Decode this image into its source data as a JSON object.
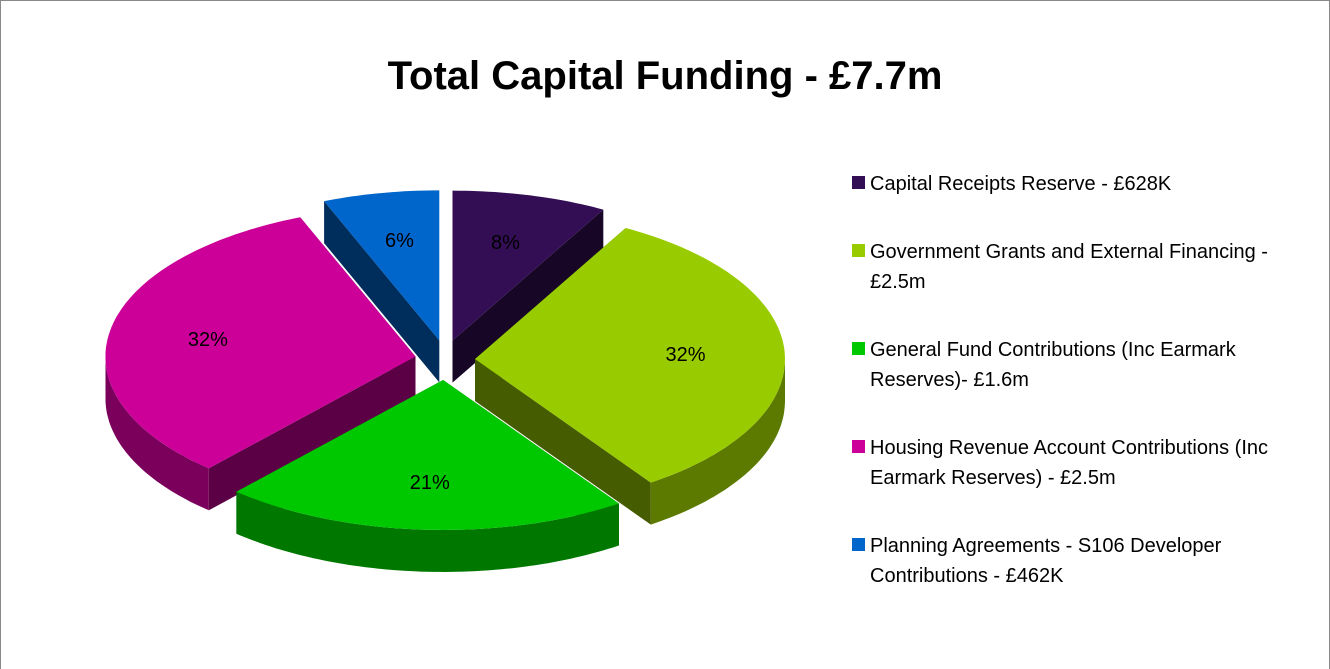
{
  "chart_data": {
    "type": "pie3d",
    "title": "Total Capital Funding - £7.7m",
    "categories": [
      "Capital Receipts Reserve - £628K",
      "Government Grants and External Financing - £2.5m",
      "General Fund Contributions (Inc Earmark Reserves)- £1.6m",
      "Housing Revenue Account Contributions (Inc Earmark Reserves) - £2.5m",
      "Planning Agreements - S106 Developer Contributions - £462K"
    ],
    "values": [
      8,
      32,
      21,
      32,
      6
    ],
    "value_labels": [
      "8%",
      "32%",
      "21%",
      "32%",
      "6%"
    ],
    "colors": [
      "#330e55",
      "#99cc00",
      "#00c800",
      "#cc0099",
      "#0066cc"
    ],
    "legend": "right"
  }
}
